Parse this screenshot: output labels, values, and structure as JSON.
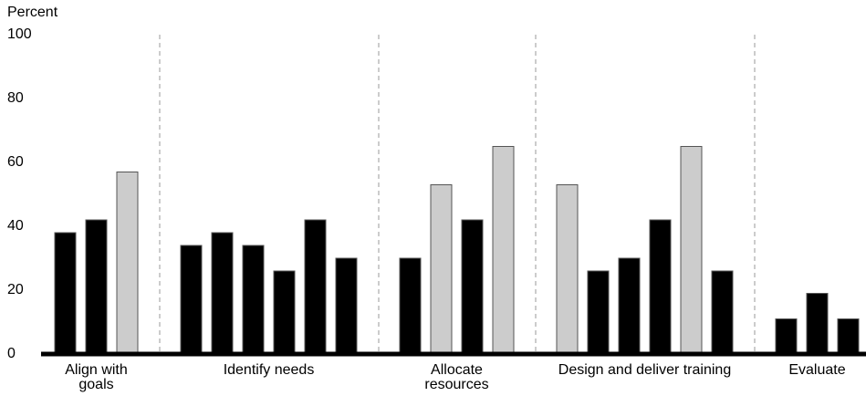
{
  "chart_data": {
    "type": "grouped-bar",
    "y_label": "Percent",
    "ylim": [
      0,
      100
    ],
    "yticks": [
      0,
      20,
      40,
      60,
      80,
      100
    ],
    "grid": false,
    "groups": [
      {
        "label": "Align with goals",
        "values": [
          38,
          42,
          57
        ],
        "colors": [
          "#000000",
          "#000000",
          "#cccccc"
        ]
      },
      {
        "label": "Identify needs",
        "values": [
          34,
          38,
          34,
          26,
          42,
          30
        ],
        "colors": [
          "#000000",
          "#000000",
          "#000000",
          "#000000",
          "#000000",
          "#000000"
        ]
      },
      {
        "label": "Allocate resources",
        "values": [
          30,
          53,
          42,
          65
        ],
        "colors": [
          "#000000",
          "#cccccc",
          "#000000",
          "#cccccc"
        ]
      },
      {
        "label": "Design and deliver training",
        "values": [
          53,
          26,
          30,
          42,
          65,
          26
        ],
        "colors": [
          "#cccccc",
          "#000000",
          "#000000",
          "#000000",
          "#cccccc",
          "#000000"
        ]
      },
      {
        "label": "Evaluate",
        "values": [
          11,
          19,
          11
        ],
        "colors": [
          "#000000",
          "#000000",
          "#000000"
        ]
      }
    ]
  }
}
